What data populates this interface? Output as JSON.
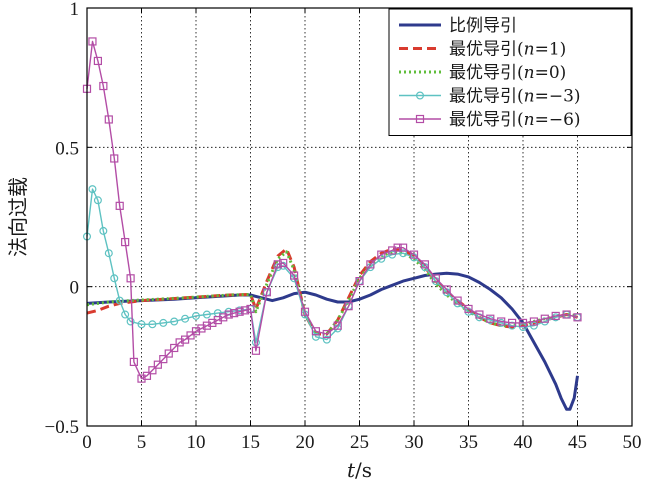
{
  "chart_data": {
    "type": "line",
    "xlabel_italic": "t",
    "xlabel_unit": "/s",
    "ylabel": "法向过载",
    "xlim": [
      0,
      50
    ],
    "ylim": [
      -0.5,
      1
    ],
    "xticks": [
      0,
      5,
      10,
      15,
      20,
      25,
      30,
      35,
      40,
      45,
      50
    ],
    "yticks": [
      -0.5,
      0,
      0.5,
      1
    ],
    "ytick_labels": [
      "−0.5",
      "0",
      "0.5",
      "1"
    ],
    "grid": true,
    "legend_position": "top-right",
    "series": [
      {
        "legend_prefix": "比例导引",
        "legend_n": "",
        "color": "#2e3a8c",
        "style": "solid",
        "marker": "none",
        "x": [
          0,
          2,
          5,
          8,
          10,
          12,
          14,
          15,
          16,
          17,
          18,
          19,
          20,
          21,
          22,
          23,
          24,
          25,
          26,
          27,
          28,
          29,
          30,
          31,
          32,
          33,
          34,
          35,
          36,
          37,
          38,
          39,
          40,
          41,
          42,
          43,
          43.5,
          44,
          44.3,
          44.7,
          45
        ],
        "y": [
          -0.06,
          -0.055,
          -0.05,
          -0.045,
          -0.04,
          -0.035,
          -0.03,
          -0.03,
          -0.04,
          -0.05,
          -0.04,
          -0.025,
          -0.02,
          -0.03,
          -0.045,
          -0.055,
          -0.055,
          -0.045,
          -0.03,
          -0.01,
          0.005,
          0.02,
          0.03,
          0.04,
          0.045,
          0.048,
          0.045,
          0.035,
          0.015,
          -0.01,
          -0.04,
          -0.08,
          -0.13,
          -0.2,
          -0.27,
          -0.35,
          -0.4,
          -0.44,
          -0.44,
          -0.4,
          -0.32
        ]
      },
      {
        "legend_prefix": "最优导引(",
        "legend_n": "=1)",
        "color": "#d93b2f",
        "style": "dash",
        "marker": "none",
        "x": [
          0,
          1,
          2,
          3,
          4,
          5,
          7,
          9,
          11,
          13,
          15,
          15.5,
          16.5,
          17.5,
          18.3,
          19,
          20,
          21,
          22,
          23,
          24,
          25,
          26,
          27,
          28,
          29,
          30,
          31,
          32,
          33,
          34,
          35,
          36,
          37,
          38,
          39,
          40,
          41,
          42,
          43,
          44,
          45
        ],
        "y": [
          -0.095,
          -0.085,
          -0.07,
          -0.06,
          -0.055,
          -0.05,
          -0.045,
          -0.04,
          -0.035,
          -0.03,
          -0.028,
          -0.08,
          0.02,
          0.11,
          0.135,
          0.07,
          -0.1,
          -0.17,
          -0.17,
          -0.12,
          -0.04,
          0.04,
          0.09,
          0.12,
          0.135,
          0.13,
          0.11,
          0.07,
          0.02,
          -0.02,
          -0.05,
          -0.08,
          -0.11,
          -0.13,
          -0.14,
          -0.145,
          -0.14,
          -0.13,
          -0.12,
          -0.11,
          -0.1,
          -0.11
        ]
      },
      {
        "legend_prefix": "最优导引(",
        "legend_n": "=0)",
        "color": "#5fbd3a",
        "style": "dot",
        "marker": "none",
        "x": [
          0,
          1,
          2,
          3,
          4,
          5,
          7,
          9,
          11,
          13,
          15,
          15.5,
          16.5,
          17.5,
          18.3,
          19,
          20,
          21,
          22,
          23,
          24,
          25,
          26,
          27,
          28,
          29,
          30,
          31,
          32,
          33,
          34,
          35,
          36,
          37,
          38,
          39,
          40,
          41,
          42,
          43,
          44,
          45
        ],
        "y": [
          -0.065,
          -0.06,
          -0.055,
          -0.052,
          -0.05,
          -0.048,
          -0.044,
          -0.04,
          -0.035,
          -0.03,
          -0.028,
          -0.09,
          0.01,
          0.1,
          0.125,
          0.06,
          -0.1,
          -0.17,
          -0.17,
          -0.12,
          -0.05,
          0.03,
          0.08,
          0.11,
          0.125,
          0.12,
          0.1,
          0.06,
          0.01,
          -0.03,
          -0.06,
          -0.09,
          -0.11,
          -0.13,
          -0.14,
          -0.14,
          -0.135,
          -0.125,
          -0.115,
          -0.105,
          -0.1,
          -0.105
        ]
      },
      {
        "legend_prefix": "最优导引(",
        "legend_n": "=−3)",
        "color": "#5ec2c2",
        "style": "solid",
        "marker": "circle",
        "x": [
          0,
          0.5,
          1,
          1.5,
          2,
          2.5,
          3,
          3.5,
          4,
          5,
          6,
          7,
          8,
          9,
          10,
          11,
          12,
          13,
          14,
          15,
          15.5,
          16.5,
          17.5,
          18,
          19,
          20,
          21,
          22,
          23,
          24,
          25,
          26,
          27,
          28,
          29,
          30,
          31,
          32,
          33,
          34,
          35,
          36,
          37,
          38,
          39,
          40,
          41,
          42,
          43,
          44,
          45
        ],
        "y": [
          0.18,
          0.35,
          0.31,
          0.2,
          0.12,
          0.03,
          -0.05,
          -0.1,
          -0.125,
          -0.135,
          -0.135,
          -0.13,
          -0.125,
          -0.115,
          -0.105,
          -0.1,
          -0.095,
          -0.09,
          -0.085,
          -0.08,
          -0.2,
          -0.02,
          0.07,
          0.075,
          0.03,
          -0.1,
          -0.18,
          -0.19,
          -0.15,
          -0.07,
          0.02,
          0.07,
          0.1,
          0.115,
          0.12,
          0.105,
          0.07,
          0.02,
          -0.02,
          -0.06,
          -0.09,
          -0.11,
          -0.12,
          -0.13,
          -0.14,
          -0.145,
          -0.14,
          -0.125,
          -0.11,
          -0.1,
          -0.11
        ]
      },
      {
        "legend_prefix": "最优导引(",
        "legend_n": "=−6)",
        "color": "#b34da6",
        "style": "solid",
        "marker": "square",
        "x": [
          0,
          0.5,
          1,
          1.5,
          2,
          2.5,
          3,
          3.5,
          4,
          4.3,
          5,
          5.5,
          6,
          6.5,
          7,
          7.5,
          8,
          8.5,
          9,
          9.5,
          10,
          10.5,
          11,
          11.5,
          12,
          12.5,
          13,
          13.5,
          14,
          14.5,
          15,
          15.5,
          16.5,
          17.5,
          18,
          19,
          20,
          21,
          22,
          23,
          24,
          25,
          26,
          27,
          28,
          28.5,
          29,
          30,
          31,
          32,
          33,
          34,
          35,
          36,
          37,
          38,
          39,
          40,
          41,
          42,
          43,
          44,
          45
        ],
        "y": [
          0.71,
          0.88,
          0.81,
          0.72,
          0.6,
          0.46,
          0.29,
          0.16,
          0.03,
          -0.27,
          -0.33,
          -0.32,
          -0.3,
          -0.28,
          -0.26,
          -0.24,
          -0.22,
          -0.2,
          -0.19,
          -0.175,
          -0.16,
          -0.15,
          -0.14,
          -0.13,
          -0.12,
          -0.11,
          -0.1,
          -0.095,
          -0.09,
          -0.085,
          -0.08,
          -0.23,
          -0.02,
          0.08,
          0.085,
          0.04,
          -0.09,
          -0.16,
          -0.17,
          -0.14,
          -0.07,
          0.02,
          0.08,
          0.115,
          0.13,
          0.14,
          0.14,
          0.115,
          0.08,
          0.03,
          -0.01,
          -0.05,
          -0.08,
          -0.1,
          -0.115,
          -0.125,
          -0.13,
          -0.13,
          -0.125,
          -0.115,
          -0.105,
          -0.1,
          -0.11
        ]
      }
    ]
  }
}
